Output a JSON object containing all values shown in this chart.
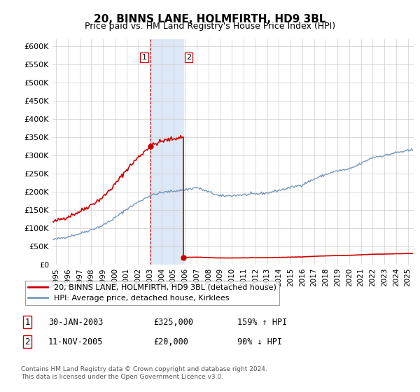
{
  "title": "20, BINNS LANE, HOLMFIRTH, HD9 3BL",
  "subtitle": "Price paid vs. HM Land Registry's House Price Index (HPI)",
  "ylabel_ticks": [
    "£0",
    "£50K",
    "£100K",
    "£150K",
    "£200K",
    "£250K",
    "£300K",
    "£350K",
    "£400K",
    "£450K",
    "£500K",
    "£550K",
    "£600K"
  ],
  "ylim": [
    0,
    620000
  ],
  "xlim_start": 1994.7,
  "xlim_end": 2025.5,
  "transaction1": {
    "date_num": 2003.08,
    "price": 325000,
    "label": "1"
  },
  "transaction2": {
    "date_num": 2005.87,
    "price": 20000,
    "label": "2"
  },
  "legend_property": "20, BINNS LANE, HOLMFIRTH, HD9 3BL (detached house)",
  "legend_hpi": "HPI: Average price, detached house, Kirklees",
  "table_rows": [
    {
      "num": "1",
      "date": "30-JAN-2003",
      "price": "£325,000",
      "hpi": "159% ↑ HPI"
    },
    {
      "num": "2",
      "date": "11-NOV-2005",
      "price": "£20,000",
      "hpi": "90% ↓ HPI"
    }
  ],
  "footnote1": "Contains HM Land Registry data © Crown copyright and database right 2024.",
  "footnote2": "This data is licensed under the Open Government Licence v3.0.",
  "property_color": "#cc0000",
  "hpi_color": "#7799bb",
  "shade_color": "#dce8f5",
  "vline1_color": "#cc0000",
  "vline2_color": "#cc0000",
  "background_color": "#ffffff",
  "grid_color": "#cccccc"
}
